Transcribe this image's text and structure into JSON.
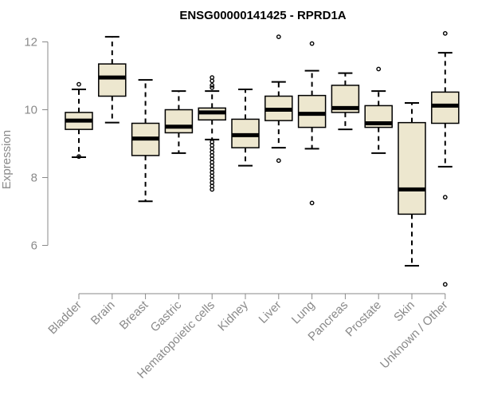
{
  "chart_data": {
    "type": "boxplot",
    "title": "ENSG00000141425 - RPRD1A",
    "xlabel": "",
    "ylabel": "Expression",
    "ylim": [
      4.6,
      12.6
    ],
    "yticks": [
      6,
      8,
      10,
      12
    ],
    "box_fill": "#EDE7CF",
    "categories": [
      "Bladder",
      "Brain",
      "Breast",
      "Gastric",
      "Hematopoietic cells",
      "Kidney",
      "Liver",
      "Lung",
      "Pancreas",
      "Prostate",
      "Skin",
      "Unknown / Other"
    ],
    "boxes": [
      {
        "name": "Bladder",
        "whisker_low": 8.6,
        "q1": 9.42,
        "median": 9.68,
        "q3": 9.92,
        "whisker_high": 10.6,
        "outliers": [
          10.75,
          8.62
        ]
      },
      {
        "name": "Brain",
        "whisker_low": 9.62,
        "q1": 10.4,
        "median": 10.95,
        "q3": 11.35,
        "whisker_high": 12.15,
        "outliers": []
      },
      {
        "name": "Breast",
        "whisker_low": 7.3,
        "q1": 8.65,
        "median": 9.15,
        "q3": 9.6,
        "whisker_high": 10.88,
        "outliers": []
      },
      {
        "name": "Gastric",
        "whisker_low": 8.72,
        "q1": 9.32,
        "median": 9.5,
        "q3": 10.0,
        "whisker_high": 10.55,
        "outliers": []
      },
      {
        "name": "Hematopoietic cells",
        "whisker_low": 9.12,
        "q1": 9.7,
        "median": 9.92,
        "q3": 10.05,
        "whisker_high": 10.55,
        "outliers": [
          10.95,
          10.85,
          10.72,
          10.65,
          9.05,
          8.95,
          8.85,
          8.75,
          8.65,
          8.55,
          8.45,
          8.35,
          8.25,
          8.15,
          8.05,
          7.95,
          7.85,
          7.75,
          7.65
        ]
      },
      {
        "name": "Kidney",
        "whisker_low": 8.35,
        "q1": 8.88,
        "median": 9.25,
        "q3": 9.72,
        "whisker_high": 10.6,
        "outliers": []
      },
      {
        "name": "Liver",
        "whisker_low": 8.88,
        "q1": 9.68,
        "median": 10.0,
        "q3": 10.4,
        "whisker_high": 10.82,
        "outliers": [
          12.15,
          8.5
        ]
      },
      {
        "name": "Lung",
        "whisker_low": 8.85,
        "q1": 9.48,
        "median": 9.88,
        "q3": 10.42,
        "whisker_high": 11.15,
        "outliers": [
          11.95,
          7.25
        ]
      },
      {
        "name": "Pancreas",
        "whisker_low": 9.42,
        "q1": 9.92,
        "median": 10.05,
        "q3": 10.72,
        "whisker_high": 11.08,
        "outliers": []
      },
      {
        "name": "Prostate",
        "whisker_low": 8.72,
        "q1": 9.48,
        "median": 9.6,
        "q3": 10.12,
        "whisker_high": 10.55,
        "outliers": [
          11.2
        ]
      },
      {
        "name": "Skin",
        "whisker_low": 5.4,
        "q1": 6.92,
        "median": 7.65,
        "q3": 9.62,
        "whisker_high": 10.2,
        "outliers": []
      },
      {
        "name": "Unknown / Other",
        "whisker_low": 8.32,
        "q1": 9.6,
        "median": 10.12,
        "q3": 10.52,
        "whisker_high": 11.68,
        "outliers": [
          12.25,
          7.42,
          4.85
        ]
      }
    ]
  }
}
